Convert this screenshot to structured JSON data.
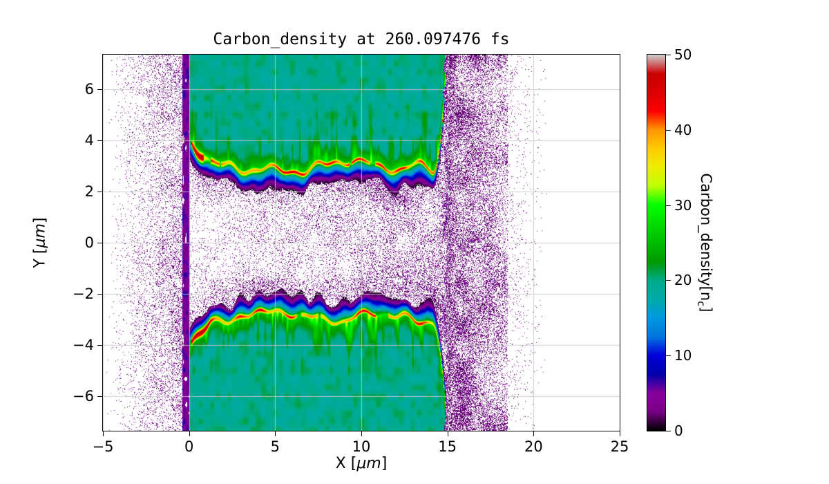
{
  "chart_data": {
    "type": "heatmap",
    "title": "Carbon_density at 260.097476 fs",
    "xlabel": {
      "pre": "X [",
      "italic": "μm",
      "post": "]"
    },
    "ylabel": {
      "pre": "Y [",
      "italic": "μm",
      "post": "]"
    },
    "xlim": [
      -5,
      25
    ],
    "ylim": [
      -7.35,
      7.35
    ],
    "xticks": [
      -5,
      0,
      5,
      10,
      15,
      20,
      25
    ],
    "yticks": [
      -6,
      -4,
      -2,
      0,
      2,
      4,
      6
    ],
    "grid": true,
    "grid_color": "rgba(200,200,200,0.85)",
    "background_empty": "#ffffff",
    "colorbar": {
      "label": {
        "pre": "Carbon_density[n",
        "sub": "c",
        "post": "]"
      },
      "ticks": [
        0,
        10,
        20,
        30,
        40,
        50
      ],
      "vmin": 0,
      "vmax": 50,
      "colormap": "nipy_spectral",
      "colormap_stops": [
        [
          0.0,
          "#000000"
        ],
        [
          0.05,
          "#770088"
        ],
        [
          0.1,
          "#880099"
        ],
        [
          0.15,
          "#0000aa"
        ],
        [
          0.2,
          "#0000dd"
        ],
        [
          0.25,
          "#0077dd"
        ],
        [
          0.3,
          "#0099dd"
        ],
        [
          0.35,
          "#00aaaa"
        ],
        [
          0.4,
          "#00aa88"
        ],
        [
          0.45,
          "#009900"
        ],
        [
          0.5,
          "#00bb00"
        ],
        [
          0.55,
          "#00dd00"
        ],
        [
          0.6,
          "#00ff00"
        ],
        [
          0.65,
          "#bbff00"
        ],
        [
          0.7,
          "#eeee00"
        ],
        [
          0.75,
          "#ffcc00"
        ],
        [
          0.8,
          "#ff9900"
        ],
        [
          0.85,
          "#ff0000"
        ],
        [
          0.9,
          "#dd0000"
        ],
        [
          0.95,
          "#cc0000"
        ],
        [
          1.0,
          "#cccccc"
        ]
      ]
    },
    "features": {
      "description": "Two carbon plasma slabs spanning x=0..15 um with bulk density ~20 nc, separated by an evacuated channel |y|<~2.8 um containing sparse low-density speckle that converges near x~16; compressed high-density ridges (~40-50 nc, red) run along the inner slab surfaces near y=+3 and y=-3, rising to |y|~4 at x~0.7 and curving steeply toward |y|~7 near x~14.8; low-density (0-7 nc) speckle halos extend over x=-4.7..0 and x=15..20.8.",
      "slab_x_range": [
        0,
        15
      ],
      "slab_bulk_density": 20,
      "channel_half_width": 2.8,
      "ridge_y": [
        3.0,
        -3.0
      ],
      "ridge_peak_density": 48,
      "ridge_left_blob": {
        "x": 0.75,
        "y_abs": 4.0
      },
      "right_edge_upturn_x": 14.8,
      "noise_x_range": [
        -4.7,
        20.8
      ],
      "noise_density_range": [
        0,
        7
      ]
    }
  }
}
